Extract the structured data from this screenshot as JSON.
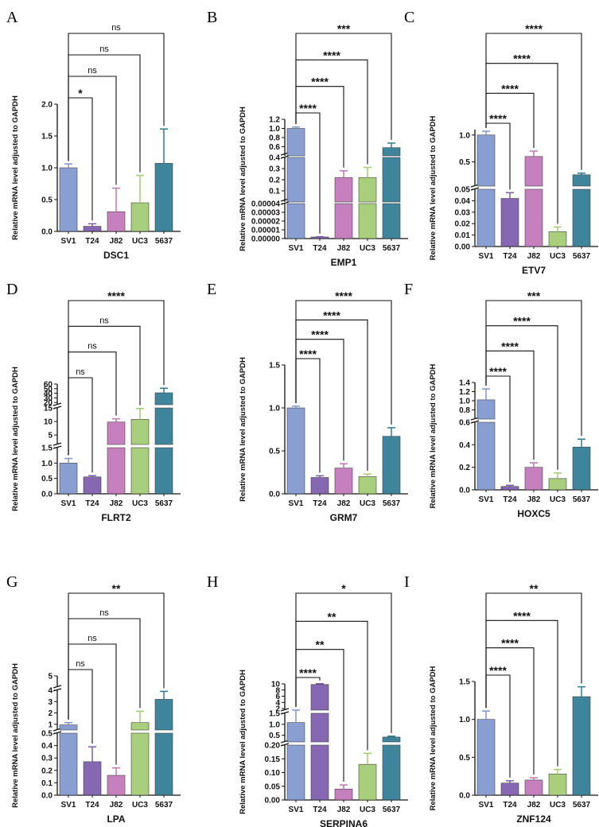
{
  "colors": {
    "SV1": "#7f97cf",
    "T24": "#7c5bab",
    "J82": "#c176b8",
    "UC3": "#a2cc72",
    "5637": "#2e7b93",
    "axis": "#111111"
  },
  "chart_data": [
    {
      "type": "bar",
      "panel": "A",
      "title": "DSC1",
      "ylabel": "Relative mRNA level adjusted to GAPDH",
      "categories": [
        "SV1",
        "T24",
        "J82",
        "UC3",
        "5637"
      ],
      "values": [
        1.0,
        0.08,
        0.31,
        0.45,
        1.07
      ],
      "errors": [
        0.06,
        0.04,
        0.37,
        0.43,
        0.54
      ],
      "segments": [
        {
          "range": [
            0,
            2.0
          ],
          "ticks": [
            0.0,
            0.5,
            1.0,
            1.5,
            2.0
          ],
          "labels": [
            "0.0",
            "0.5",
            "1.0",
            "1.5",
            "2.0"
          ]
        }
      ],
      "significance": [
        {
          "to": "T24",
          "label": "*"
        },
        {
          "to": "J82",
          "label": "ns"
        },
        {
          "to": "UC3",
          "label": "ns"
        },
        {
          "to": "5637",
          "label": "ns"
        }
      ]
    },
    {
      "type": "bar",
      "panel": "B",
      "title": "EMP1",
      "ylabel": "Relative mRNA level adjusted to GAPDH",
      "categories": [
        "SV1",
        "T24",
        "J82",
        "UC3",
        "5637"
      ],
      "values": [
        1.0,
        1.8e-06,
        0.22,
        0.22,
        0.58
      ],
      "errors": [
        0.03,
        3e-07,
        0.06,
        0.09,
        0.1
      ],
      "segments": [
        {
          "range": [
            0,
            4e-05
          ],
          "ticks": [
            0,
            1e-05,
            2e-05,
            3e-05,
            4e-05
          ],
          "labels": [
            "0.00000",
            "0.00001",
            "0.00002",
            "0.00003",
            "0.00004"
          ]
        },
        {
          "range": [
            0,
            0.4
          ],
          "ticks": [
            0.1,
            0.2,
            0.3,
            0.4
          ],
          "labels": [
            "0.1",
            "0.2",
            "0.3",
            "0.4"
          ]
        },
        {
          "range": [
            0.4,
            1.2
          ],
          "ticks": [
            0.6,
            0.8,
            1.0,
            1.2
          ],
          "labels": [
            "0.6",
            "0.8",
            "1.0",
            "1.2"
          ]
        }
      ],
      "significance": [
        {
          "to": "T24",
          "label": "****"
        },
        {
          "to": "J82",
          "label": "****"
        },
        {
          "to": "UC3",
          "label": "****"
        },
        {
          "to": "5637",
          "label": "***"
        }
      ]
    },
    {
      "type": "bar",
      "panel": "C",
      "title": "ETV7",
      "ylabel": "Relative mRNA level adjusted to GAPDH",
      "categories": [
        "SV1",
        "T24",
        "J82",
        "UC3",
        "5637"
      ],
      "values": [
        1.0,
        0.042,
        0.6,
        0.013,
        0.26
      ],
      "errors": [
        0.07,
        0.005,
        0.1,
        0.004,
        0.03
      ],
      "segments": [
        {
          "range": [
            0,
            0.05
          ],
          "ticks": [
            0.0,
            0.01,
            0.02,
            0.03,
            0.04,
            0.05
          ],
          "labels": [
            "0.00",
            "0.01",
            "0.02",
            "0.03",
            "0.04",
            "0.05"
          ]
        },
        {
          "range": [
            0.05,
            1.1
          ],
          "ticks": [
            0.5,
            1.0
          ],
          "labels": [
            "0.5",
            "1.0"
          ]
        }
      ],
      "significance": [
        {
          "to": "T24",
          "label": "****"
        },
        {
          "to": "J82",
          "label": "****"
        },
        {
          "to": "UC3",
          "label": "****"
        },
        {
          "to": "5637",
          "label": "****"
        }
      ]
    },
    {
      "type": "bar",
      "panel": "D",
      "title": "FLRT2",
      "ylabel": "Relative mRNA level adjusted to GAPDH",
      "categories": [
        "SV1",
        "T24",
        "J82",
        "UC3",
        "5637"
      ],
      "values": [
        1.0,
        0.55,
        9.8,
        10.8,
        41
      ],
      "errors": [
        0.15,
        0.04,
        1.2,
        4.0,
        10
      ],
      "segments": [
        {
          "range": [
            0,
            1.5
          ],
          "ticks": [
            0.0,
            0.5,
            1.0,
            1.5
          ],
          "labels": [
            "0.0",
            "0.5",
            "1.0",
            "1.5"
          ]
        },
        {
          "range": [
            1.5,
            15
          ],
          "ticks": [
            5,
            10,
            15
          ],
          "labels": [
            "5",
            "10",
            "15"
          ]
        },
        {
          "range": [
            15,
            60
          ],
          "ticks": [
            20,
            30,
            40,
            50,
            60
          ],
          "labels": [
            "20",
            "30",
            "40",
            "50",
            "60"
          ]
        }
      ],
      "significance": [
        {
          "to": "T24",
          "label": "ns"
        },
        {
          "to": "J82",
          "label": "ns"
        },
        {
          "to": "UC3",
          "label": "ns"
        },
        {
          "to": "5637",
          "label": "****"
        }
      ]
    },
    {
      "type": "bar",
      "panel": "E",
      "title": "GRM7",
      "ylabel": "Relative mRNA level adjusted to GAPDH",
      "categories": [
        "SV1",
        "T24",
        "J82",
        "UC3",
        "5637"
      ],
      "values": [
        1.0,
        0.19,
        0.3,
        0.2,
        0.67
      ],
      "errors": [
        0.02,
        0.02,
        0.05,
        0.03,
        0.1
      ],
      "segments": [
        {
          "range": [
            0,
            1.5
          ],
          "ticks": [
            0.0,
            0.5,
            1.0,
            1.5
          ],
          "labels": [
            "0.0",
            "0.5",
            "1.0",
            "1.5"
          ]
        }
      ],
      "significance": [
        {
          "to": "T24",
          "label": "****"
        },
        {
          "to": "J82",
          "label": "****"
        },
        {
          "to": "UC3",
          "label": "****"
        },
        {
          "to": "5637",
          "label": "****"
        }
      ]
    },
    {
      "type": "bar",
      "panel": "F",
      "title": "HOXC5",
      "ylabel": "Relative mRNA level adjusted to GAPDH",
      "categories": [
        "SV1",
        "T24",
        "J82",
        "UC3",
        "5637"
      ],
      "values": [
        1.02,
        0.03,
        0.2,
        0.1,
        0.38
      ],
      "errors": [
        0.24,
        0.01,
        0.04,
        0.05,
        0.07
      ],
      "segments": [
        {
          "range": [
            0,
            0.6
          ],
          "ticks": [
            0.0,
            0.2,
            0.4,
            0.6
          ],
          "labels": [
            "0.0",
            "0.2",
            "0.4",
            "0.6"
          ]
        },
        {
          "range": [
            0.6,
            1.4
          ],
          "ticks": [
            0.8,
            1.0,
            1.2,
            1.4
          ],
          "labels": [
            "0.8",
            "1.0",
            "1.2",
            "1.4"
          ]
        }
      ],
      "significance": [
        {
          "to": "T24",
          "label": "****"
        },
        {
          "to": "J82",
          "label": "****"
        },
        {
          "to": "UC3",
          "label": "****"
        },
        {
          "to": "5637",
          "label": "***"
        }
      ]
    },
    {
      "type": "bar",
      "panel": "G",
      "title": "LPA",
      "ylabel": "Relative mRNA level adjusted to GAPDH",
      "categories": [
        "SV1",
        "T24",
        "J82",
        "UC3",
        "5637"
      ],
      "values": [
        0.95,
        0.27,
        0.16,
        1.15,
        3.2
      ],
      "errors": [
        0.2,
        0.12,
        0.06,
        1.0,
        0.7
      ],
      "segments": [
        {
          "range": [
            0,
            0.5
          ],
          "ticks": [
            0.0,
            0.1,
            0.2,
            0.3,
            0.4,
            0.5
          ],
          "labels": [
            "0.0",
            "0.1",
            "0.2",
            "0.3",
            "0.4",
            "0.5"
          ]
        },
        {
          "range": [
            0.5,
            4
          ],
          "ticks": [
            1,
            2,
            3,
            4
          ],
          "labels": [
            "1",
            "2",
            "3",
            "4"
          ]
        },
        {
          "range": [
            4,
            5
          ],
          "ticks": [
            5
          ],
          "labels": [
            "5"
          ]
        }
      ],
      "significance": [
        {
          "to": "T24",
          "label": "ns"
        },
        {
          "to": "J82",
          "label": "ns"
        },
        {
          "to": "UC3",
          "label": "ns"
        },
        {
          "to": "5637",
          "label": "**"
        }
      ]
    },
    {
      "type": "bar",
      "panel": "H",
      "title": "SERPINA6",
      "ylabel": "Relative mRNA level adjusted to GAPDH",
      "categories": [
        "SV1",
        "T24",
        "J82",
        "UC3",
        "5637"
      ],
      "values": [
        1.08,
        9.8,
        0.04,
        0.13,
        0.42
      ],
      "errors": [
        0.45,
        0.25,
        0.015,
        0.04,
        0.04
      ],
      "segments": [
        {
          "range": [
            0,
            0.2
          ],
          "ticks": [
            0.0,
            0.05,
            0.1,
            0.15,
            0.2
          ],
          "labels": [
            "0.00",
            "0.05",
            "0.10",
            "0.15",
            "0.20"
          ]
        },
        {
          "range": [
            0.2,
            1.5
          ],
          "ticks": [
            0.5,
            1.0,
            1.5
          ],
          "labels": [
            "0.5",
            "1.0",
            "1.5"
          ]
        },
        {
          "range": [
            1.5,
            10
          ],
          "ticks": [
            2,
            4,
            6,
            8,
            10
          ],
          "labels": [
            "2",
            "4",
            "6",
            "8",
            "10"
          ]
        }
      ],
      "significance": [
        {
          "to": "T24",
          "label": "****"
        },
        {
          "to": "J82",
          "label": "**"
        },
        {
          "to": "UC3",
          "label": "**"
        },
        {
          "to": "5637",
          "label": "*"
        }
      ]
    },
    {
      "type": "bar",
      "panel": "I",
      "title": "ZNF124",
      "ylabel": "Relative mRNA level adjusted to GAPDH",
      "categories": [
        "SV1",
        "T24",
        "J82",
        "UC3",
        "5637"
      ],
      "values": [
        1.0,
        0.16,
        0.2,
        0.28,
        1.3
      ],
      "errors": [
        0.11,
        0.03,
        0.03,
        0.06,
        0.13
      ],
      "segments": [
        {
          "range": [
            0,
            1.5
          ],
          "ticks": [
            0.0,
            0.5,
            1.0,
            1.5
          ],
          "labels": [
            "0.0",
            "0.5",
            "1.0",
            "1.5"
          ]
        }
      ],
      "significance": [
        {
          "to": "T24",
          "label": "****"
        },
        {
          "to": "J82",
          "label": "****"
        },
        {
          "to": "UC3",
          "label": "****"
        },
        {
          "to": "5637",
          "label": "**"
        }
      ]
    }
  ]
}
